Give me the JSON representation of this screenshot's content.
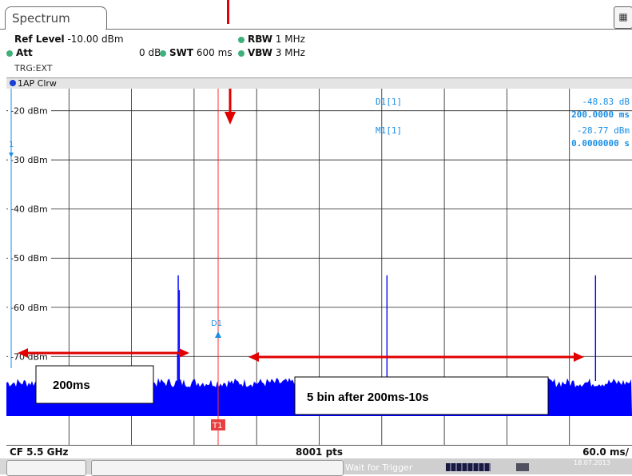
{
  "tab": {
    "title": "Spectrum"
  },
  "header": {
    "ref_level_label": "Ref Level",
    "ref_level_value": "-10.00 dBm",
    "att_label": "Att",
    "att_value": "0 dB",
    "swt_label": "SWT",
    "swt_value": "600 ms",
    "rbw_label": "RBW",
    "rbw_value": "1 MHz",
    "vbw_label": "VBW",
    "vbw_value": "3 MHz",
    "trigger": "TRG:EXT",
    "status_dot_color": "#3fb07a"
  },
  "trace": {
    "label": "1AP Clrw",
    "color": "#1a3fd6"
  },
  "markers": {
    "d1_label": "D1[1]",
    "d1_value": "-48.83 dB",
    "d1_time": "200.0000 ms",
    "m1_label": "M1[1]",
    "m1_value": "-28.77 dBm",
    "m1_time": "0.0000000 s",
    "d1_tag": "D1",
    "t1_tag": "T1",
    "ref_tag": "1",
    "marker_color": "#1a8ee6"
  },
  "axis": {
    "y_ticks": [
      "-20 dBm",
      "-30 dBm",
      "-40 dBm",
      "-50 dBm",
      "-60 dBm",
      "-70 dBm"
    ],
    "y_tick_values": [
      -20,
      -30,
      -40,
      -50,
      -60,
      -70
    ],
    "ylim": [
      -88,
      -15.5
    ],
    "x_range_ms": [
      0,
      600
    ],
    "noise_floor_dbm": -75
  },
  "spikes": [
    {
      "time_ms": 164.8,
      "level_dbm": -53.5
    },
    {
      "time_ms": 165.8,
      "level_dbm": -56.5
    },
    {
      "time_ms": 164.2,
      "level_dbm": -69
    },
    {
      "time_ms": 365,
      "level_dbm": -53.5
    },
    {
      "time_ms": 565,
      "level_dbm": -53.5
    }
  ],
  "annotations": {
    "box1": "200ms",
    "box2": "5 bin after 200ms-10s",
    "arrow_color": "#e00000"
  },
  "footer": {
    "cf": "CF 5.5 GHz",
    "points": "8001 pts",
    "span": "60.0 ms/"
  },
  "status": {
    "wait_text": "Wait for Trigger",
    "date": "18.07.2013"
  },
  "colors": {
    "grid": "#222222",
    "trace": "#0000ff",
    "marker_line": "#ff3030"
  }
}
